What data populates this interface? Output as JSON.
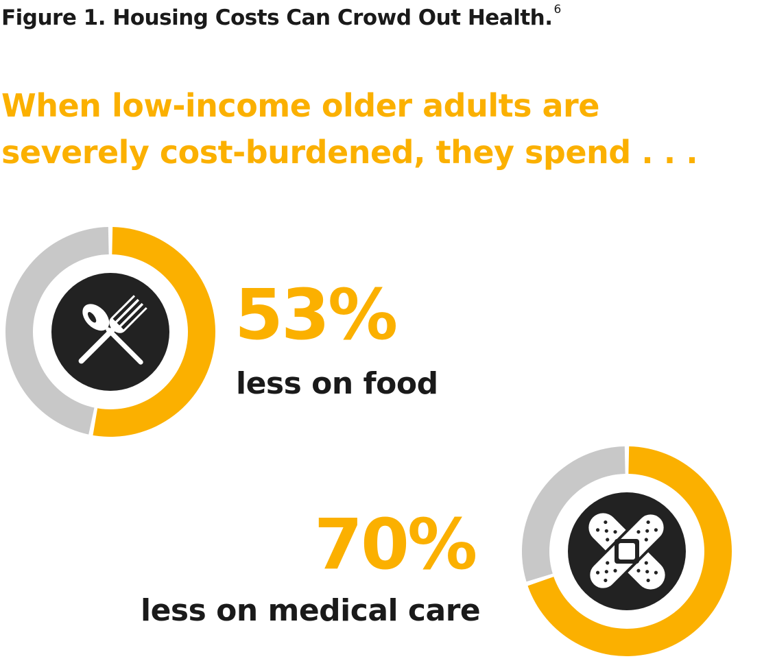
{
  "figure": {
    "title": "Figure 1. Housing Costs Can Crowd Out Health.",
    "footnote": "6"
  },
  "headline": {
    "line1": "When low-income older adults are",
    "line2": "severely cost-burdened, they spend . . ."
  },
  "colors": {
    "accent": "#fbb000",
    "remainder": "#c8c8c8",
    "icon_circle": "#222222",
    "text_dark": "#1a1a1a"
  },
  "stats": [
    {
      "value_label": "53%",
      "description": "less on food",
      "icon": "fork-and-spoon-icon"
    },
    {
      "value_label": "70%",
      "description": "less on medical care",
      "icon": "crossed-bandages-icon"
    }
  ],
  "chart_data": [
    {
      "type": "pie",
      "categories": [
        "less on food"
      ],
      "values": [
        53
      ],
      "unit": "%"
    },
    {
      "type": "pie",
      "categories": [
        "less on medical care"
      ],
      "values": [
        70
      ],
      "unit": "%"
    }
  ]
}
